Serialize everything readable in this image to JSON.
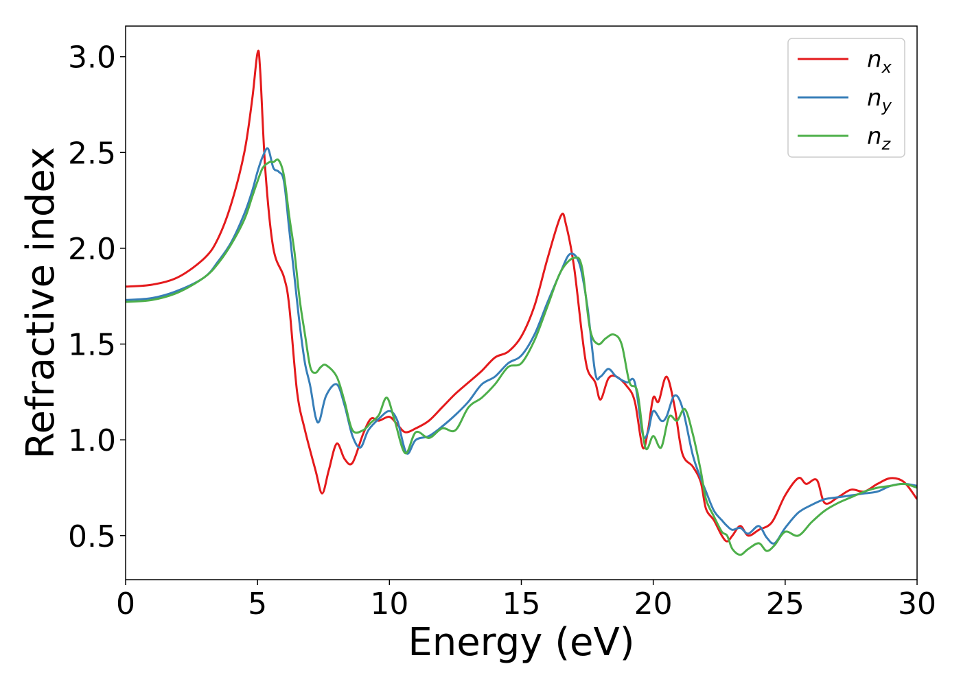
{
  "chart_data": {
    "type": "line",
    "xlabel": "Energy (eV)",
    "ylabel": "Refractive index",
    "xlim": [
      0,
      30
    ],
    "ylim": [
      0.27,
      3.16
    ],
    "xticks": [
      0,
      5,
      10,
      15,
      20,
      25,
      30
    ],
    "xtick_labels": [
      "0",
      "5",
      "10",
      "15",
      "20",
      "25",
      "30"
    ],
    "yticks": [
      0.5,
      1.0,
      1.5,
      2.0,
      2.5,
      3.0
    ],
    "ytick_labels": [
      "0.5",
      "1.0",
      "1.5",
      "2.0",
      "2.5",
      "3.0"
    ],
    "grid": false,
    "legend_position": "top-right",
    "series": [
      {
        "name": "n_x",
        "label_base": "n",
        "label_sub": "x",
        "color": "#e41a1c",
        "x": [
          0,
          1,
          2,
          3,
          3.5,
          4,
          4.5,
          4.8,
          5.0,
          5.1,
          5.3,
          5.6,
          6.0,
          6.2,
          6.5,
          6.8,
          7.2,
          7.45,
          7.7,
          8.0,
          8.3,
          8.6,
          9.0,
          9.3,
          9.6,
          10.0,
          10.3,
          10.6,
          11.0,
          11.5,
          12.0,
          12.5,
          13.0,
          13.5,
          14.0,
          14.5,
          15.0,
          15.5,
          16.0,
          16.5,
          16.7,
          17.0,
          17.3,
          17.5,
          17.8,
          18.0,
          18.3,
          18.6,
          19.0,
          19.3,
          19.6,
          19.8,
          20.0,
          20.2,
          20.5,
          20.8,
          21.1,
          21.5,
          21.8,
          22.0,
          22.3,
          22.6,
          22.8,
          23.0,
          23.3,
          23.6,
          24.0,
          24.5,
          25.0,
          25.5,
          25.8,
          26.2,
          26.5,
          27.0,
          27.5,
          28.0,
          28.5,
          29.0,
          29.5,
          30.0
        ],
        "y": [
          1.8,
          1.81,
          1.85,
          1.95,
          2.05,
          2.23,
          2.5,
          2.78,
          3.02,
          2.93,
          2.4,
          2.0,
          1.85,
          1.7,
          1.25,
          1.05,
          0.84,
          0.72,
          0.84,
          0.98,
          0.9,
          0.88,
          1.03,
          1.11,
          1.1,
          1.12,
          1.08,
          1.04,
          1.06,
          1.1,
          1.17,
          1.24,
          1.3,
          1.36,
          1.43,
          1.46,
          1.54,
          1.7,
          1.95,
          2.17,
          2.12,
          1.9,
          1.55,
          1.37,
          1.3,
          1.21,
          1.32,
          1.33,
          1.28,
          1.2,
          0.96,
          1.05,
          1.22,
          1.2,
          1.33,
          1.18,
          0.93,
          0.86,
          0.78,
          0.64,
          0.58,
          0.5,
          0.47,
          0.5,
          0.55,
          0.5,
          0.53,
          0.57,
          0.71,
          0.8,
          0.77,
          0.79,
          0.67,
          0.7,
          0.74,
          0.73,
          0.77,
          0.8,
          0.78,
          0.69
        ]
      },
      {
        "name": "n_y",
        "label_base": "n",
        "label_sub": "y",
        "color": "#377eb8",
        "x": [
          0,
          1,
          2,
          3,
          3.5,
          4,
          4.5,
          4.8,
          5.0,
          5.2,
          5.4,
          5.6,
          5.8,
          6.0,
          6.2,
          6.4,
          6.6,
          6.8,
          7.0,
          7.2,
          7.35,
          7.6,
          8.0,
          8.3,
          8.6,
          8.9,
          9.2,
          9.6,
          10.0,
          10.3,
          10.65,
          11.0,
          11.5,
          12.0,
          12.5,
          13.0,
          13.5,
          14.0,
          14.5,
          15.0,
          15.5,
          16.0,
          16.5,
          16.85,
          17.2,
          17.5,
          17.8,
          18.0,
          18.3,
          18.6,
          19.0,
          19.3,
          19.6,
          19.8,
          20.0,
          20.3,
          20.5,
          20.8,
          21.1,
          21.5,
          21.8,
          22.0,
          22.3,
          22.6,
          22.8,
          23.0,
          23.3,
          23.6,
          24.0,
          24.3,
          24.6,
          25.0,
          25.5,
          26.0,
          26.5,
          27.0,
          27.5,
          28.0,
          28.5,
          29.0,
          29.5,
          30.0
        ],
        "y": [
          1.73,
          1.74,
          1.78,
          1.85,
          1.93,
          2.03,
          2.18,
          2.3,
          2.4,
          2.48,
          2.52,
          2.42,
          2.4,
          2.35,
          2.1,
          1.85,
          1.6,
          1.4,
          1.28,
          1.12,
          1.1,
          1.23,
          1.29,
          1.18,
          1.02,
          0.96,
          1.05,
          1.11,
          1.15,
          1.1,
          0.93,
          1.0,
          1.02,
          1.07,
          1.13,
          1.2,
          1.29,
          1.33,
          1.4,
          1.44,
          1.55,
          1.72,
          1.88,
          1.97,
          1.92,
          1.7,
          1.35,
          1.33,
          1.37,
          1.33,
          1.3,
          1.3,
          1.03,
          1.04,
          1.15,
          1.1,
          1.12,
          1.23,
          1.17,
          0.92,
          0.8,
          0.73,
          0.63,
          0.58,
          0.55,
          0.53,
          0.54,
          0.51,
          0.55,
          0.49,
          0.46,
          0.54,
          0.62,
          0.66,
          0.69,
          0.7,
          0.71,
          0.72,
          0.73,
          0.76,
          0.77,
          0.76
        ]
      },
      {
        "name": "n_z",
        "label_base": "n",
        "label_sub": "z",
        "color": "#4daf4a",
        "x": [
          0,
          1,
          2,
          3,
          3.5,
          4,
          4.5,
          4.8,
          5.0,
          5.2,
          5.45,
          5.6,
          5.8,
          6.0,
          6.2,
          6.4,
          6.6,
          6.8,
          7.0,
          7.2,
          7.4,
          7.6,
          8.0,
          8.3,
          8.6,
          9.0,
          9.3,
          9.6,
          9.9,
          10.2,
          10.6,
          11.0,
          11.5,
          12.0,
          12.5,
          13.0,
          13.5,
          14.0,
          14.5,
          15.0,
          15.5,
          16.0,
          16.5,
          17.0,
          17.3,
          17.6,
          17.9,
          18.2,
          18.5,
          18.8,
          19.1,
          19.4,
          19.7,
          20.0,
          20.3,
          20.6,
          20.9,
          21.2,
          21.5,
          21.8,
          22.0,
          22.3,
          22.6,
          22.8,
          23.0,
          23.3,
          23.6,
          24.0,
          24.3,
          24.6,
          25.0,
          25.5,
          26.0,
          26.5,
          27.0,
          27.5,
          28.0,
          28.5,
          29.0,
          29.5,
          30.0
        ],
        "y": [
          1.72,
          1.73,
          1.77,
          1.85,
          1.92,
          2.02,
          2.15,
          2.27,
          2.35,
          2.42,
          2.45,
          2.45,
          2.46,
          2.38,
          2.17,
          1.98,
          1.73,
          1.55,
          1.38,
          1.35,
          1.38,
          1.39,
          1.33,
          1.2,
          1.05,
          1.05,
          1.09,
          1.13,
          1.22,
          1.1,
          0.93,
          1.04,
          1.01,
          1.06,
          1.05,
          1.17,
          1.22,
          1.29,
          1.38,
          1.4,
          1.52,
          1.7,
          1.88,
          1.95,
          1.9,
          1.58,
          1.5,
          1.53,
          1.55,
          1.5,
          1.3,
          1.25,
          0.96,
          1.02,
          0.96,
          1.12,
          1.1,
          1.16,
          1.03,
          0.84,
          0.69,
          0.6,
          0.52,
          0.5,
          0.43,
          0.4,
          0.43,
          0.46,
          0.42,
          0.45,
          0.52,
          0.5,
          0.57,
          0.63,
          0.67,
          0.7,
          0.73,
          0.75,
          0.76,
          0.77,
          0.75
        ]
      }
    ]
  }
}
